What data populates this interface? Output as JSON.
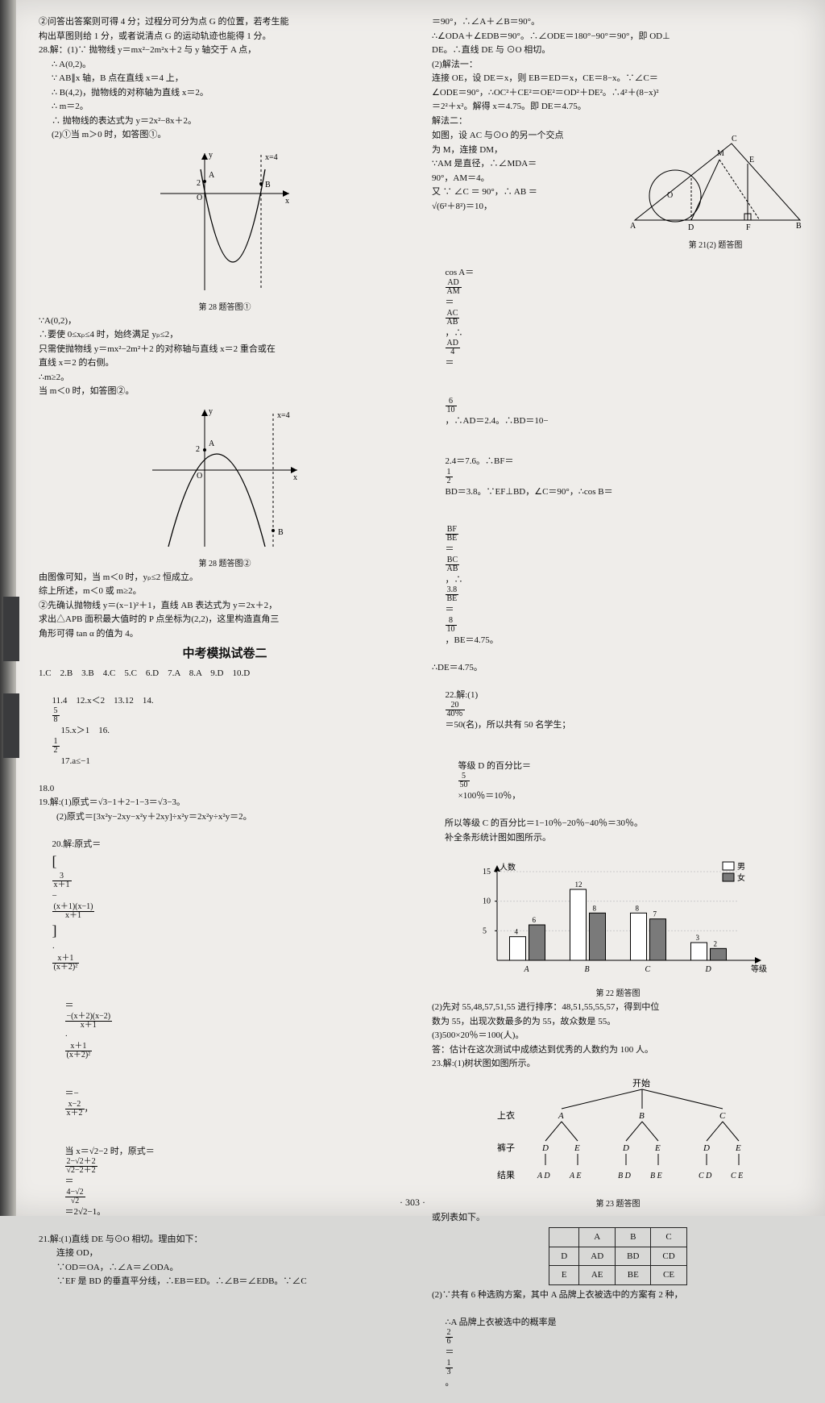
{
  "page_number": "· 303 ·",
  "left": {
    "q2_intro": [
      "②问答出答案则可得 4 分；过程分可分为点 G 的位置，若考生能",
      "构出草图则给 1 分，或者说清点 G 的运动轨迹也能得 1 分。"
    ],
    "q28": {
      "head": "28.解：(1)∵ 抛物线 y＝mx²−2m²x＋2 与 y 轴交于 A 点，",
      "lines": [
        "∴ A(0,2)。",
        "∵ AB∥x 轴，B 点在直线 x＝4 上，",
        "∴ B(4,2)，抛物线的对称轴为直线 x＝2。",
        "∴ m＝2。",
        "∴ 抛物线的表达式为 y＝2x²−8x＋2。",
        "(2)①当 m＞0 时，如答图①。"
      ],
      "graph1": {
        "x_label": "x",
        "y_label": "y",
        "x4": "x=4",
        "A": "A",
        "B": "B",
        "O": "O",
        "cap": "第 28 题答图①"
      },
      "after_g1": [
        "∵A(0,2)，",
        "∴要使 0≤xₚ≤4 时，始终满足 yₚ≤2，",
        "只需使抛物线 y＝mx²−2m²＋2 的对称轴与直线 x＝2 重合或在",
        "直线 x＝2 的右侧。",
        "∴m≥2。",
        "当 m＜0 时，如答图②。"
      ],
      "graph2": {
        "x_label": "x",
        "y_label": "y",
        "x4": "x=4",
        "A": "A",
        "B": "B",
        "O": "O",
        "two": "2",
        "cap": "第 28 题答图②"
      },
      "after_g2": [
        "由图像可知，当 m＜0 时，yₚ≤2 恒成立。",
        "综上所述，m＜0 或 m≥2。",
        "②先确认抛物线 y＝(x−1)²＋1，直线 AB 表达式为 y＝2x＋2，",
        "求出△APB 面积最大值时的 P 点坐标为(2,2)，这里构造直角三",
        "角形可得 tan α 的值为 4。"
      ]
    },
    "section_title": "中考模拟试卷二",
    "answers1": "1.C　2.B　3.B　4.C　5.C　6.D　7.A　8.A　9.D　10.D",
    "answers2_pref": "11.4　12.x＜2　13.12　14.",
    "a14_n": "5",
    "a14_d": "8",
    "answers2_mid": "　15.x＞1　16.",
    "a16_n": "1",
    "a16_d": "2",
    "answers2_suf": "　17.a≤−1",
    "a18": "18.0",
    "q19a": "19.解:(1)原式＝√3−1＋2−1−3＝√3−3。",
    "q19b": "　　(2)原式＝[3x²y−2xy−x²y＋2xy]÷x²y＝2x²y÷x²y＝2。",
    "q20_head": "20.解:原式＝",
    "q20_b1": "3",
    "q20_b2": "x＋1",
    "q20_b3": "(x＋1)(x−1)",
    "q20_b4": "x＋1",
    "q20_b5": "x＋1",
    "q20_b6": "(x＋2)²",
    "q20_l2a": "−(x＋2)(x−2)",
    "q20_l2b": "x＋1",
    "q20_l2c": "x＋1",
    "q20_l2d": "(x＋2)²",
    "q20_l3a": "x−2",
    "q20_l3b": "x＋2",
    "q20_l4_pref": "当 x＝√2−2 时，原式＝",
    "q20_l4a": "2−√2＋2",
    "q20_l4b": "√2−2＋2",
    "q20_l4c": "4−√2",
    "q20_l4d": "√2",
    "q20_l4_suf": "＝2√2−1。",
    "q21": [
      "21.解:(1)直线 DE 与⊙O 相切。理由如下：",
      "　　连接 OD，",
      "　　∵OD＝OA，∴∠A＝∠ODA。",
      "　　∵EF 是 BD 的垂直平分线，∴EB＝ED。∴∠B＝∠EDB。∵∠C"
    ]
  },
  "right": {
    "top": [
      "＝90°，∴∠A＋∠B＝90°。",
      "∴∠ODA＋∠EDB＝90°。∴∠ODE＝180°−90°＝90°，即 OD⊥",
      "DE。∴直线 DE 与 ⊙O 相切。",
      "(2)解法一：",
      "连接 OE，设 DE＝x，则 EB＝ED＝x，CE＝8−x。∵∠C＝",
      "∠ODE＝90°，∴OC²＋CE²＝OE²＝OD²＋DE²。∴4²＋(8−x)²",
      "＝2²＋x²。解得 x＝4.75。即 DE＝4.75。",
      "解法二：",
      "如图，设 AC 与⊙O 的另一个交点",
      "为 M，连接 DM，"
    ],
    "geom": {
      "am_line": "∵AM 是直径，∴∠MDA＝",
      "line2": "90°，AM＝4。",
      "line3": "又 ∵ ∠C ＝ 90°，∴ AB ＝",
      "line4": "√(6²＋8²)＝10，",
      "A": "A",
      "B": "B",
      "C": "C",
      "D": "D",
      "E": "E",
      "F": "F",
      "M": "M",
      "O": "O",
      "cap": "第 21(2) 题答图"
    },
    "cos_pref": "cos A＝",
    "cos_f1n": "AD",
    "cos_f1d": "AM",
    "cos_eq1": "＝",
    "cos_f2n": "AC",
    "cos_f2d": "AB",
    "cos_suf": "，∴",
    "cos_f3n": "AD",
    "cos_f3d": "4",
    "cos_eq2": "＝",
    "cos2_f1n": "6",
    "cos2_f1d": "10",
    "cos2_mid": "，∴AD＝2.4。∴BD＝10−",
    "line_bf": "2.4＝7.6。∴BF＝",
    "bf_n": "1",
    "bf_d": "2",
    "bf_suf": "BD＝3.8。∵EF⊥BD，∠C＝90°，∴cos B＝",
    "be_f1n": "BF",
    "be_f1d": "BE",
    "be_eq": "＝",
    "be_f2n": "BC",
    "be_f2d": "AB",
    "be_mid": "，∴",
    "be_f3n": "3.8",
    "be_f3d": "BE",
    "be_eq2": "＝",
    "be_f4n": "8",
    "be_f4d": "10",
    "be_suf": "，BE＝4.75。",
    "de_line": "∴DE＝4.75。",
    "q22_pref": "22.解:(1)",
    "q22_f1n": "20",
    "q22_f1d": "40％",
    "q22_m1": "＝50(名)，所以共有 50 名学生；",
    "q22_l2_pref": "等级 D 的百分比＝",
    "q22_l2n": "5",
    "q22_l2d": "50",
    "q22_l2_suf": "×100％＝10％，",
    "q22_l3": "所以等级 C 的百分比＝1−10％−20％−40％＝30％。",
    "q22_l4": "补全条形统计图如图所示。",
    "bar": {
      "ylab": "人数",
      "xlab": "等级",
      "ticks": [
        5,
        10,
        15
      ],
      "cats": [
        "A",
        "B",
        "C",
        "D"
      ],
      "male": [
        4,
        12,
        8,
        3
      ],
      "female": [
        6,
        8,
        7,
        2
      ],
      "legend_m": "男",
      "legend_f": "女",
      "cap": "第 22 题答图",
      "male_fill": "#ffffff",
      "female_fill": "#7a7a7a",
      "axis_color": "#000000",
      "grid_color": "#cccccc",
      "bar_stroke": "#000000",
      "label_fontsize": 10
    },
    "q22_after": [
      "(2)先对 55,48,57,51,55 进行排序：48,51,55,55,57，得到中位",
      "数为 55，出现次数最多的为 55，故众数是 55。",
      "(3)500×20％＝100(人)。",
      "答：估计在这次测试中成绩达到优秀的人数约为 100 人。"
    ],
    "q23_head": "23.解:(1)树状图如图所示。",
    "tree": {
      "root": "开始",
      "row1_label": "上衣",
      "row1": [
        "A",
        "B",
        "C"
      ],
      "row2_label": "裤子",
      "row2": [
        "D",
        "E",
        "D",
        "E",
        "D",
        "E"
      ],
      "row3_label": "结果",
      "row3": [
        "A D",
        "A E",
        "B D",
        "B E",
        "C D",
        "C E"
      ],
      "cap": "第 23 题答图"
    },
    "table_intro": "或列表如下。",
    "table": {
      "cols": [
        "",
        "A",
        "B",
        "C"
      ],
      "r1": [
        "D",
        "AD",
        "BD",
        "CD"
      ],
      "r2": [
        "E",
        "AE",
        "BE",
        "CE"
      ]
    },
    "q23_end_l1": "(2)∵共有 6 种选购方案，其中 A 品牌上衣被选中的方案有 2 种，",
    "q23_end_pref": "∴A 品牌上衣被选中的概率是",
    "q23_end_n1": "2",
    "q23_end_d1": "6",
    "q23_end_eq": "＝",
    "q23_end_n2": "1",
    "q23_end_d2": "3",
    "q23_end_suf": "。"
  }
}
